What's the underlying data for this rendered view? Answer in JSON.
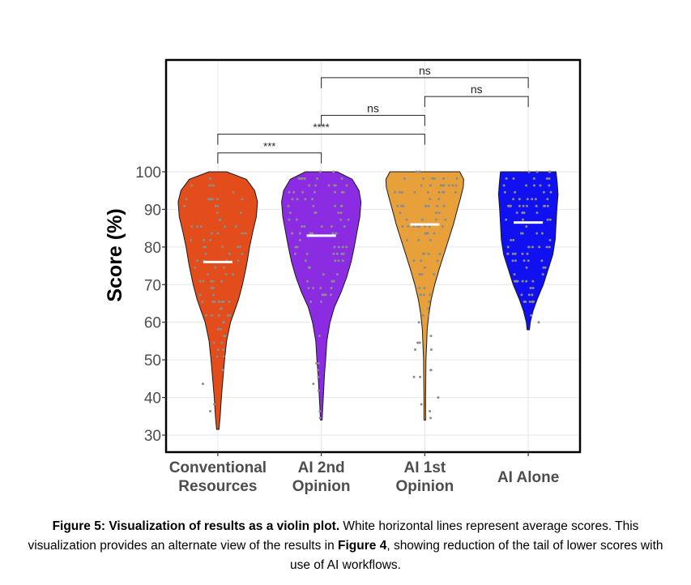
{
  "chart_data": {
    "type": "violin",
    "ylabel": "Score (%)",
    "xlabel": "",
    "ylim": [
      28,
      126
    ],
    "yticks": [
      30,
      40,
      50,
      60,
      70,
      80,
      90,
      100
    ],
    "grid": true,
    "categories": [
      {
        "label": [
          "Conventional",
          "Resources"
        ],
        "color": "#e34d1b",
        "mean": 76,
        "min": 31.5,
        "max": 100,
        "profile": [
          [
            31.5,
            0.03
          ],
          [
            35,
            0.06
          ],
          [
            40,
            0.09
          ],
          [
            45,
            0.13
          ],
          [
            50,
            0.17
          ],
          [
            55,
            0.22
          ],
          [
            60,
            0.32
          ],
          [
            63,
            0.42
          ],
          [
            66,
            0.52
          ],
          [
            70,
            0.62
          ],
          [
            75,
            0.72
          ],
          [
            80,
            0.8
          ],
          [
            84,
            0.88
          ],
          [
            88,
            0.97
          ],
          [
            92,
            1.0
          ],
          [
            95,
            0.93
          ],
          [
            98,
            0.72
          ],
          [
            100,
            0.22
          ]
        ]
      },
      {
        "label": [
          "AI 2nd",
          "Opinion"
        ],
        "color": "#8b2be2",
        "mean": 83,
        "min": 34,
        "max": 100,
        "profile": [
          [
            34,
            0.02
          ],
          [
            38,
            0.04
          ],
          [
            42,
            0.06
          ],
          [
            46,
            0.08
          ],
          [
            50,
            0.11
          ],
          [
            55,
            0.14
          ],
          [
            60,
            0.22
          ],
          [
            64,
            0.33
          ],
          [
            68,
            0.5
          ],
          [
            72,
            0.64
          ],
          [
            76,
            0.75
          ],
          [
            80,
            0.83
          ],
          [
            84,
            0.9
          ],
          [
            88,
            0.97
          ],
          [
            92,
            1.0
          ],
          [
            95,
            0.95
          ],
          [
            98,
            0.78
          ],
          [
            100,
            0.4
          ]
        ]
      },
      {
        "label": [
          "AI 1st",
          "Opinion"
        ],
        "color": "#e8a03a",
        "mean": 86,
        "min": 34,
        "max": 100,
        "profile": [
          [
            34,
            0.02
          ],
          [
            40,
            0.02
          ],
          [
            45,
            0.025
          ],
          [
            50,
            0.03
          ],
          [
            55,
            0.05
          ],
          [
            58,
            0.06
          ],
          [
            62,
            0.1
          ],
          [
            66,
            0.16
          ],
          [
            70,
            0.25
          ],
          [
            74,
            0.36
          ],
          [
            78,
            0.48
          ],
          [
            82,
            0.6
          ],
          [
            86,
            0.72
          ],
          [
            90,
            0.82
          ],
          [
            93,
            0.9
          ],
          [
            96,
            0.97
          ],
          [
            98,
            0.98
          ],
          [
            100,
            0.88
          ]
        ]
      },
      {
        "label": [
          "AI Alone"
        ],
        "color": "#1010f0",
        "mean": 86.5,
        "min": 58,
        "max": 100,
        "profile": [
          [
            58,
            0.03
          ],
          [
            60,
            0.05
          ],
          [
            63,
            0.12
          ],
          [
            66,
            0.22
          ],
          [
            70,
            0.38
          ],
          [
            74,
            0.5
          ],
          [
            78,
            0.62
          ],
          [
            82,
            0.68
          ],
          [
            86,
            0.7
          ],
          [
            90,
            0.72
          ],
          [
            94,
            0.75
          ],
          [
            97,
            0.73
          ],
          [
            100,
            0.7
          ]
        ]
      }
    ],
    "significance": [
      {
        "from": 0,
        "to": 1,
        "label": "***",
        "y": 105
      },
      {
        "from": 0,
        "to": 2,
        "label": "****",
        "y": 110
      },
      {
        "from": 1,
        "to": 2,
        "label": "ns",
        "y": 115
      },
      {
        "from": 2,
        "to": 3,
        "label": "ns",
        "y": 120
      },
      {
        "from": 1,
        "to": 3,
        "label": "ns",
        "y": 125
      }
    ],
    "points_color": "#8c8c8c",
    "mean_line_color": "#ffffff"
  },
  "caption": {
    "bold": "Figure 5: Visualization of results as a violin plot.",
    "text1": " White horizontal lines represent average scores. This visualization provides an alternate view of the results in ",
    "ref": "Figure 4",
    "text2": ", showing reduction of the tail of lower scores with use of AI workflows."
  }
}
